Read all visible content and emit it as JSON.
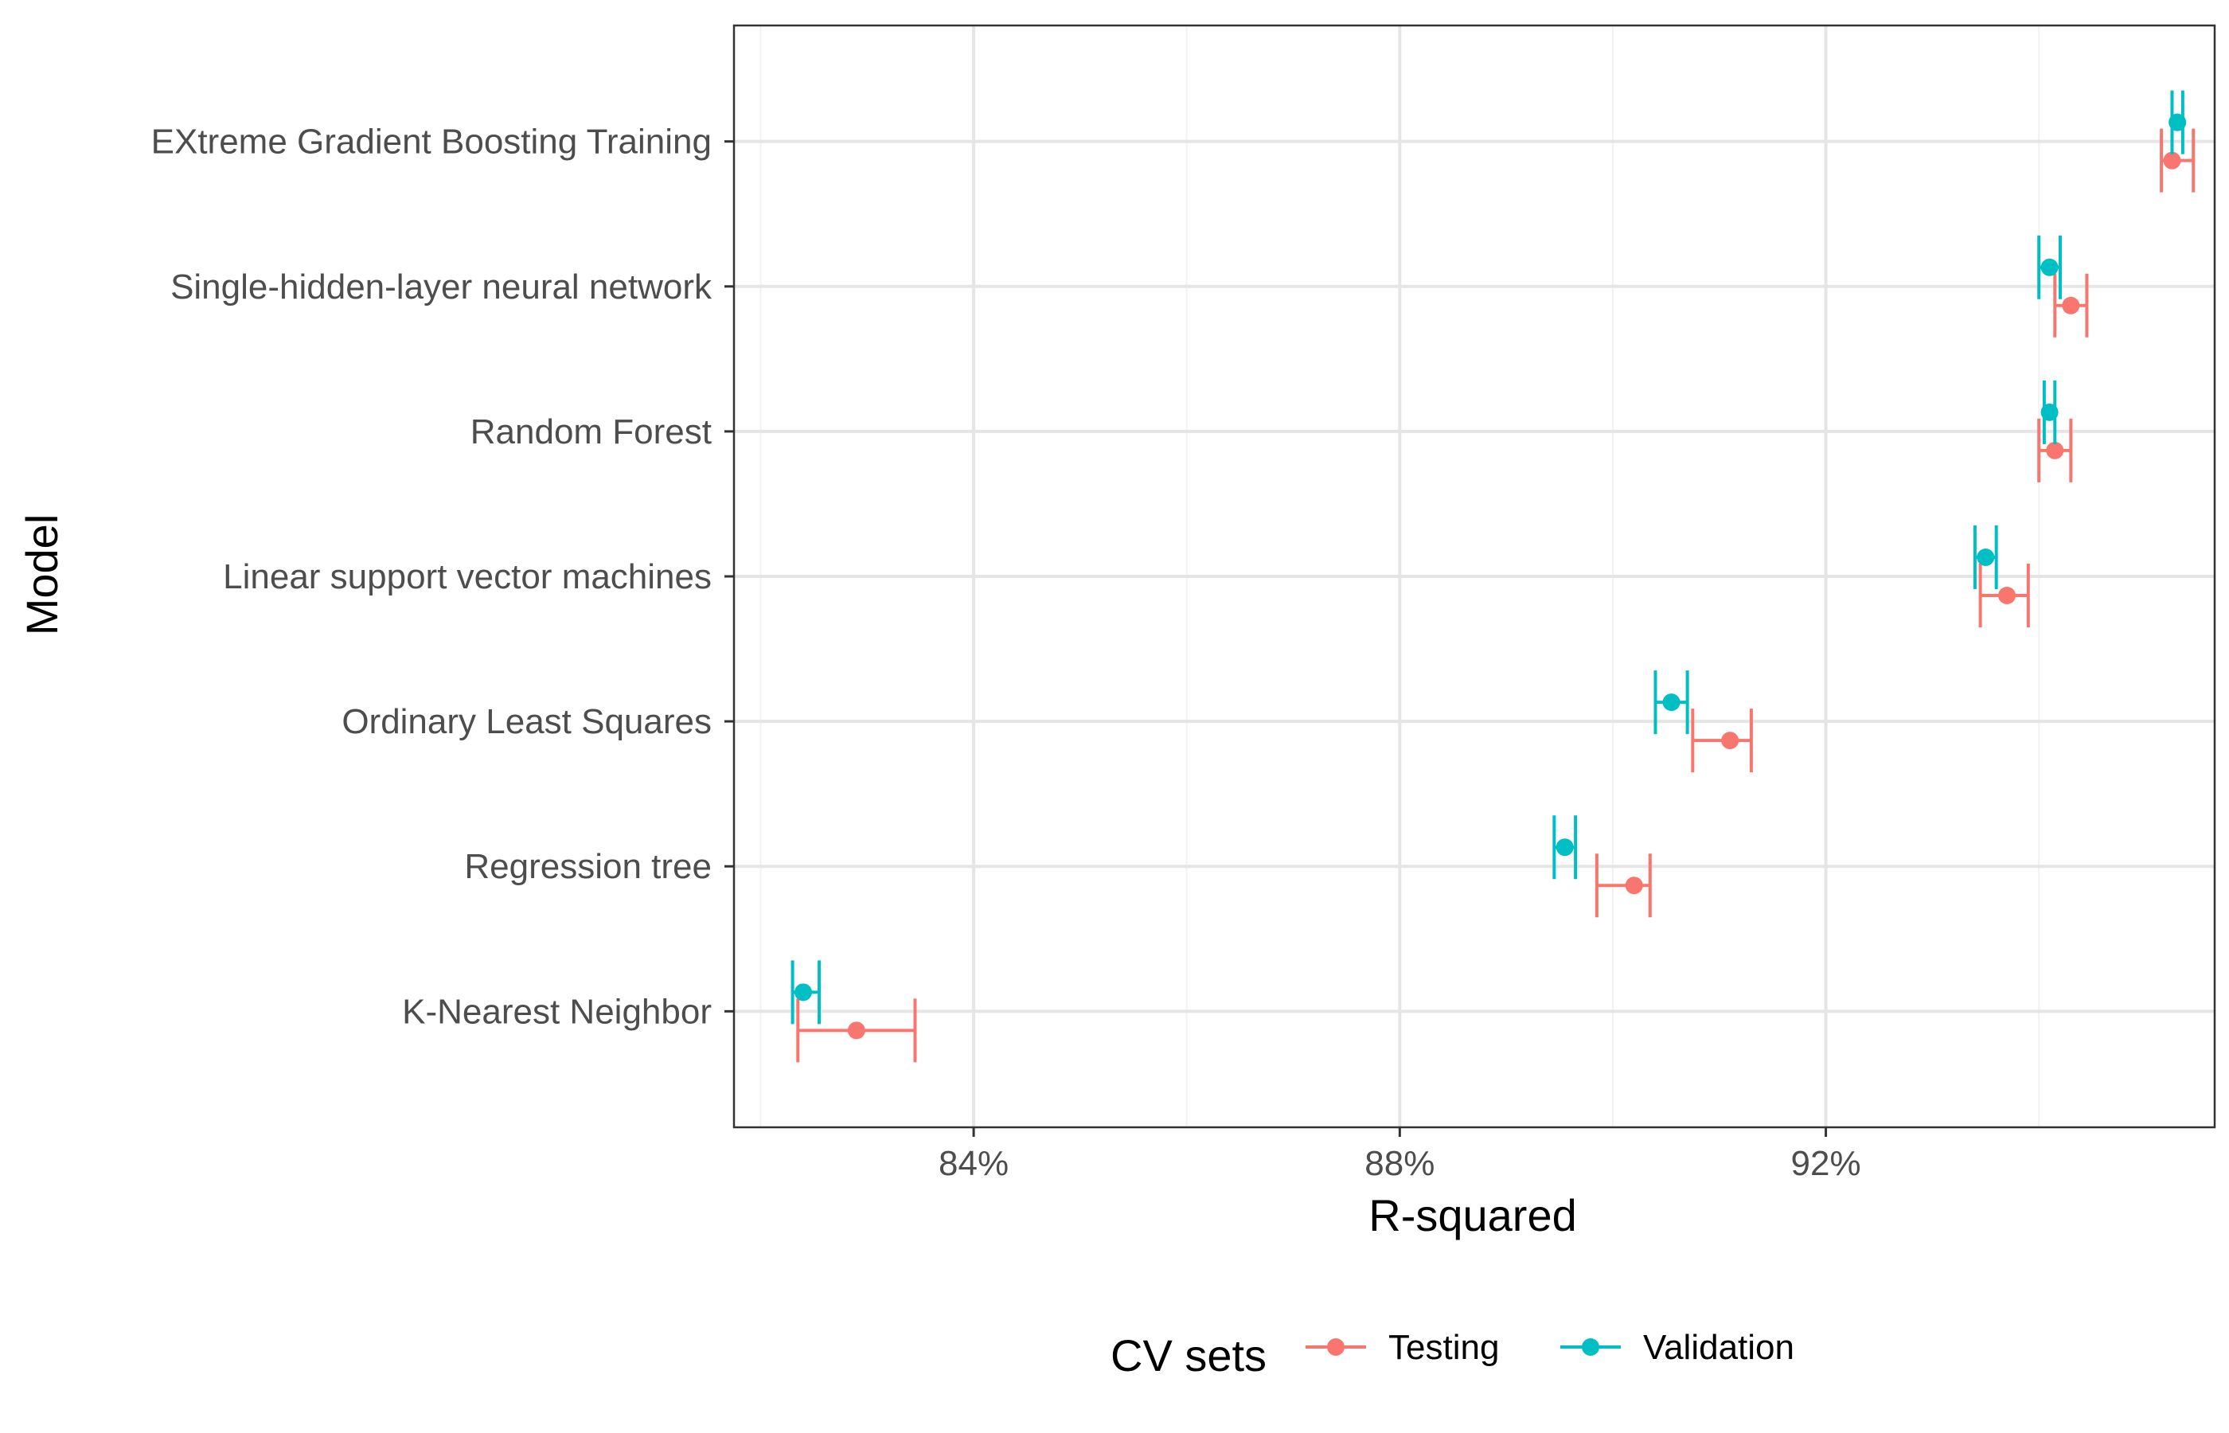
{
  "colors": {
    "Testing": "#F8766D",
    "Validation": "#00BFC4",
    "panel_border": "#333333",
    "grid_major": "#E5E5E5",
    "grid_minor": "#F2F2F2"
  },
  "chart_data": {
    "type": "errorbar",
    "title": "",
    "xlabel": "R-squared",
    "ylabel": "Model",
    "xlim": [
      0.8175,
      0.9565
    ],
    "x_ticks": [
      0.84,
      0.88,
      0.92
    ],
    "x_tick_labels": [
      "84%",
      "88%",
      "92%"
    ],
    "x_minor_ticks": [
      0.82,
      0.86,
      0.9,
      0.94
    ],
    "grid": true,
    "legend": {
      "title": "CV sets",
      "position": "bottom",
      "entries": [
        "Testing",
        "Validation"
      ]
    },
    "categories": [
      "K-Nearest Neighbor",
      "Regression tree",
      "Ordinary Least Squares",
      "Linear support vector machines",
      "Random Forest",
      "Single-hidden-layer neural network",
      "EXtreme Gradient Boosting Training"
    ],
    "series": [
      {
        "name": "Testing",
        "values": [
          0.829,
          0.902,
          0.911,
          0.937,
          0.9415,
          0.943,
          0.9525
        ],
        "lower": [
          0.8235,
          0.8985,
          0.9075,
          0.9345,
          0.94,
          0.9415,
          0.9515
        ],
        "upper": [
          0.8345,
          0.9035,
          0.913,
          0.939,
          0.943,
          0.9445,
          0.9545
        ]
      },
      {
        "name": "Validation",
        "values": [
          0.824,
          0.8955,
          0.9055,
          0.935,
          0.941,
          0.941,
          0.953
        ],
        "lower": [
          0.823,
          0.8945,
          0.904,
          0.934,
          0.9405,
          0.94,
          0.9525
        ],
        "upper": [
          0.8255,
          0.8965,
          0.907,
          0.936,
          0.9415,
          0.942,
          0.9535
        ]
      }
    ]
  }
}
